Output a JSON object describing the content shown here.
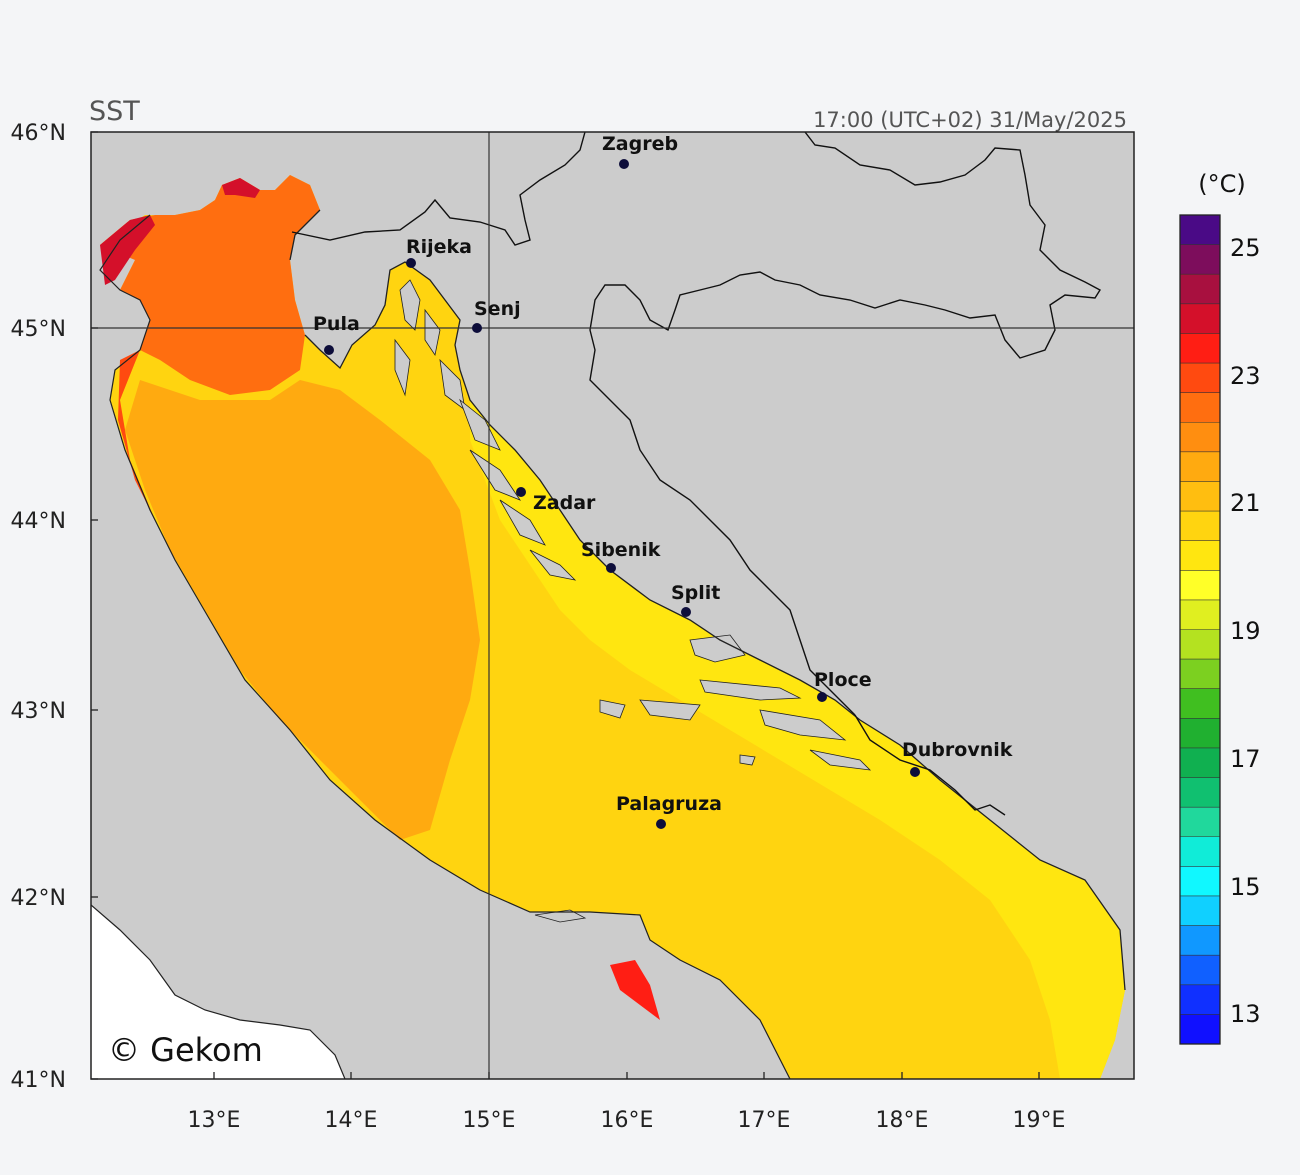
{
  "map": {
    "title": "SST",
    "timestamp": "17:00 (UTC+02)  31/May/2025",
    "copyright": "© Gekom",
    "lat_ticks": [
      "46°N",
      "45°N",
      "44°N",
      "43°N",
      "42°N",
      "41°N"
    ],
    "lon_ticks": [
      "13°E",
      "14°E",
      "15°E",
      "16°E",
      "17°E",
      "18°E",
      "19°E"
    ],
    "cities": [
      {
        "name": "Zagreb"
      },
      {
        "name": "Rijeka"
      },
      {
        "name": "Senj"
      },
      {
        "name": "Pula"
      },
      {
        "name": "Zadar"
      },
      {
        "name": "Sibenik"
      },
      {
        "name": "Split"
      },
      {
        "name": "Ploce"
      },
      {
        "name": "Dubrovnik"
      },
      {
        "name": "Palagruza"
      }
    ],
    "colors": {
      "land": "#cccccc",
      "plot_background": "#ffffff",
      "grid": "#333333",
      "city_marker": "#0d0d3a"
    }
  },
  "colorbar": {
    "unit": "(°C)",
    "labels": [
      "25",
      "23",
      "21",
      "19",
      "17",
      "15",
      "13"
    ],
    "colors": [
      "#4a0a86",
      "#7d0d5c",
      "#a8103f",
      "#d4102a",
      "#ff1e14",
      "#ff4a10",
      "#ff6e10",
      "#ff8e10",
      "#ffaa10",
      "#ffbe10",
      "#ffd410",
      "#ffe610",
      "#ffff28",
      "#e0ef20",
      "#b4e220",
      "#7cd020",
      "#40bf20",
      "#20b030",
      "#10b050",
      "#10c070",
      "#20d89c",
      "#10ecd8",
      "#10f8ff",
      "#10d0ff",
      "#1098ff",
      "#1060ff",
      "#1030ff",
      "#1010ff"
    ]
  }
}
